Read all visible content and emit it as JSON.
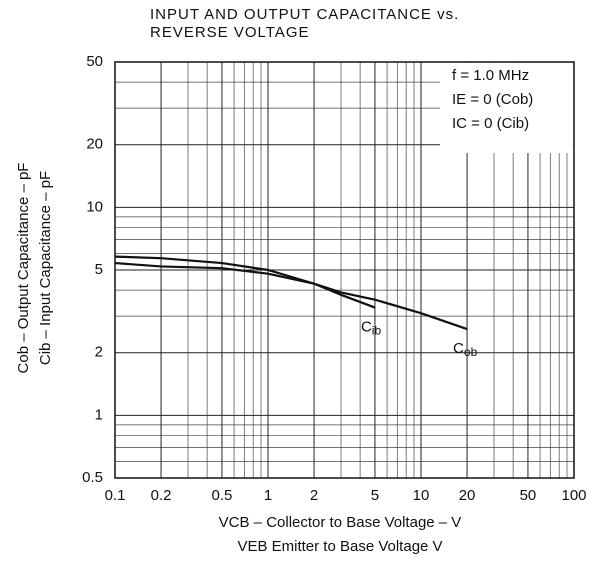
{
  "chart_data": {
    "type": "line",
    "title": [
      "INPUT AND OUTPUT CAPACITANCE vs.",
      "REVERSE VOLTAGE"
    ],
    "xlabel": [
      "VCB – Collector to Base Voltage – V",
      "VEB   Emitter to Base Voltage   V"
    ],
    "ylabel": [
      "Cob – Output Capacitance – pF",
      "Cib – Input Capacitance – pF"
    ],
    "annotations": [
      "f = 1.0 MHz",
      "IE = 0 (Cob)",
      "IC = 0 (Cib)"
    ],
    "log_x": true,
    "log_y": true,
    "grid": true,
    "x": [
      0.1,
      0.2,
      0.5,
      1,
      2,
      3,
      5,
      10,
      20
    ],
    "series": [
      {
        "name": "Cob",
        "color": "#111111",
        "values": [
          5.8,
          5.7,
          5.4,
          5.0,
          4.3,
          3.9,
          3.6,
          3.1,
          2.6
        ]
      },
      {
        "name": "Cib",
        "color": "#111111",
        "values": [
          5.4,
          5.2,
          5.1,
          4.8,
          4.3,
          3.8,
          3.3,
          null,
          null
        ]
      }
    ],
    "xlim": [
      0.1,
      100
    ],
    "ylim": [
      0.5,
      50
    ],
    "xticks": [
      0.1,
      0.2,
      0.5,
      1,
      2,
      5,
      10,
      20,
      50,
      100
    ],
    "yticks": [
      0.5,
      1,
      2,
      5,
      10,
      20,
      50
    ],
    "xminor": [
      0.3,
      0.4,
      0.6,
      0.7,
      0.8,
      0.9,
      3,
      4,
      6,
      7,
      8,
      9,
      30,
      40,
      60,
      70,
      80,
      90
    ],
    "yminor": [
      0.6,
      0.7,
      0.8,
      0.9,
      3,
      4,
      6,
      7,
      8,
      9,
      30,
      40
    ]
  }
}
